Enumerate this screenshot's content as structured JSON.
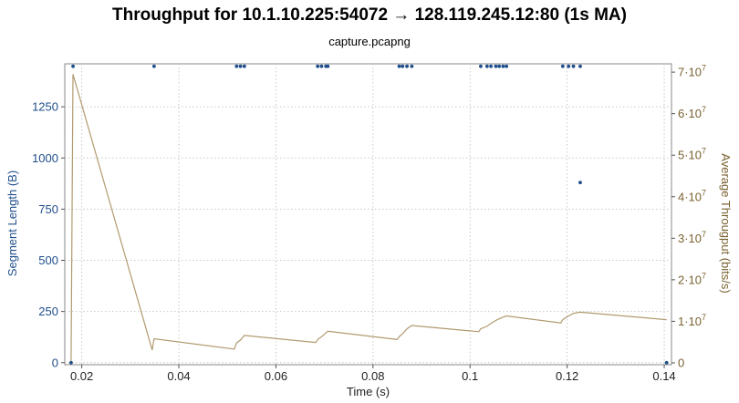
{
  "title": "Throughput for 10.1.10.225:54072 → 128.119.245.12:80 (1s MA)",
  "subtitle": "capture.pcapng",
  "colors": {
    "segment": "#1f4e8c",
    "throughput": "#b09a6e",
    "left_axis": "#1f4e8c",
    "right_axis": "#7a6230",
    "grid": "#c8c8c8"
  },
  "chart_data": {
    "type": "scatter",
    "grid": true,
    "x": {
      "label": "Time (s)",
      "range": [
        0.0165,
        0.1415
      ],
      "ticks": [
        0.02,
        0.04,
        0.06,
        0.08,
        0.1,
        0.12,
        0.14
      ],
      "tick_labels": [
        "0.02",
        "0.04",
        "0.06",
        "0.08",
        "0.1",
        "0.12",
        "0.14"
      ]
    },
    "y_left": {
      "label": "Segment Length (B)",
      "range": [
        -10,
        1460
      ],
      "ticks": [
        0,
        250,
        500,
        750,
        1000,
        1250
      ],
      "tick_labels": [
        "0",
        "250",
        "500",
        "750",
        "1000",
        "1250"
      ]
    },
    "y_right": {
      "label": "Average Througput (bits/s)",
      "range": [
        -450000,
        72000000
      ],
      "ticks": [
        0,
        10000000,
        20000000,
        30000000,
        40000000,
        50000000,
        60000000,
        70000000
      ],
      "tick_labels": [
        {
          "base": "0",
          "exp": ""
        },
        {
          "base": "1·10",
          "exp": "7"
        },
        {
          "base": "2·10",
          "exp": "7"
        },
        {
          "base": "3·10",
          "exp": "7"
        },
        {
          "base": "4·10",
          "exp": "7"
        },
        {
          "base": "5·10",
          "exp": "7"
        },
        {
          "base": "6·10",
          "exp": "7"
        },
        {
          "base": "7·10",
          "exp": "7"
        }
      ]
    },
    "series": [
      {
        "name": "Segment Length",
        "axis": "left",
        "kind": "points",
        "points": [
          [
            0.0178,
            0
          ],
          [
            0.0182,
            1448
          ],
          [
            0.0349,
            1448
          ],
          [
            0.0519,
            1448
          ],
          [
            0.0527,
            1448
          ],
          [
            0.0535,
            1448
          ],
          [
            0.0686,
            1448
          ],
          [
            0.0694,
            1448
          ],
          [
            0.0703,
            1448
          ],
          [
            0.0707,
            1448
          ],
          [
            0.0854,
            1448
          ],
          [
            0.0861,
            1448
          ],
          [
            0.087,
            1448
          ],
          [
            0.088,
            1448
          ],
          [
            0.1022,
            1448
          ],
          [
            0.1035,
            1448
          ],
          [
            0.1043,
            1448
          ],
          [
            0.1053,
            1448
          ],
          [
            0.106,
            1448
          ],
          [
            0.1068,
            1448
          ],
          [
            0.1075,
            1448
          ],
          [
            0.1191,
            1448
          ],
          [
            0.1203,
            1448
          ],
          [
            0.1213,
            1448
          ],
          [
            0.1227,
            1448
          ],
          [
            0.1227,
            880
          ],
          [
            0.1405,
            0
          ]
        ]
      },
      {
        "name": "Average Throughput",
        "axis": "right",
        "kind": "line",
        "points": [
          [
            0.0178,
            0
          ],
          [
            0.0182,
            69500000
          ],
          [
            0.0345,
            3100000
          ],
          [
            0.0349,
            5800000
          ],
          [
            0.0514,
            3300000
          ],
          [
            0.0519,
            4800000
          ],
          [
            0.0527,
            5500000
          ],
          [
            0.0535,
            6600000
          ],
          [
            0.0682,
            4900000
          ],
          [
            0.0686,
            5600000
          ],
          [
            0.0694,
            6300000
          ],
          [
            0.0703,
            7200000
          ],
          [
            0.0707,
            7600000
          ],
          [
            0.085,
            5600000
          ],
          [
            0.0854,
            6300000
          ],
          [
            0.0861,
            7000000
          ],
          [
            0.087,
            8200000
          ],
          [
            0.088,
            9000000
          ],
          [
            0.1018,
            7500000
          ],
          [
            0.1022,
            8200000
          ],
          [
            0.1035,
            8800000
          ],
          [
            0.1043,
            9500000
          ],
          [
            0.1053,
            10200000
          ],
          [
            0.106,
            10600000
          ],
          [
            0.1068,
            11000000
          ],
          [
            0.1075,
            11300000
          ],
          [
            0.1187,
            9600000
          ],
          [
            0.1191,
            10400000
          ],
          [
            0.1203,
            11300000
          ],
          [
            0.1213,
            11900000
          ],
          [
            0.1227,
            12200000
          ],
          [
            0.1405,
            10400000
          ]
        ]
      }
    ]
  }
}
